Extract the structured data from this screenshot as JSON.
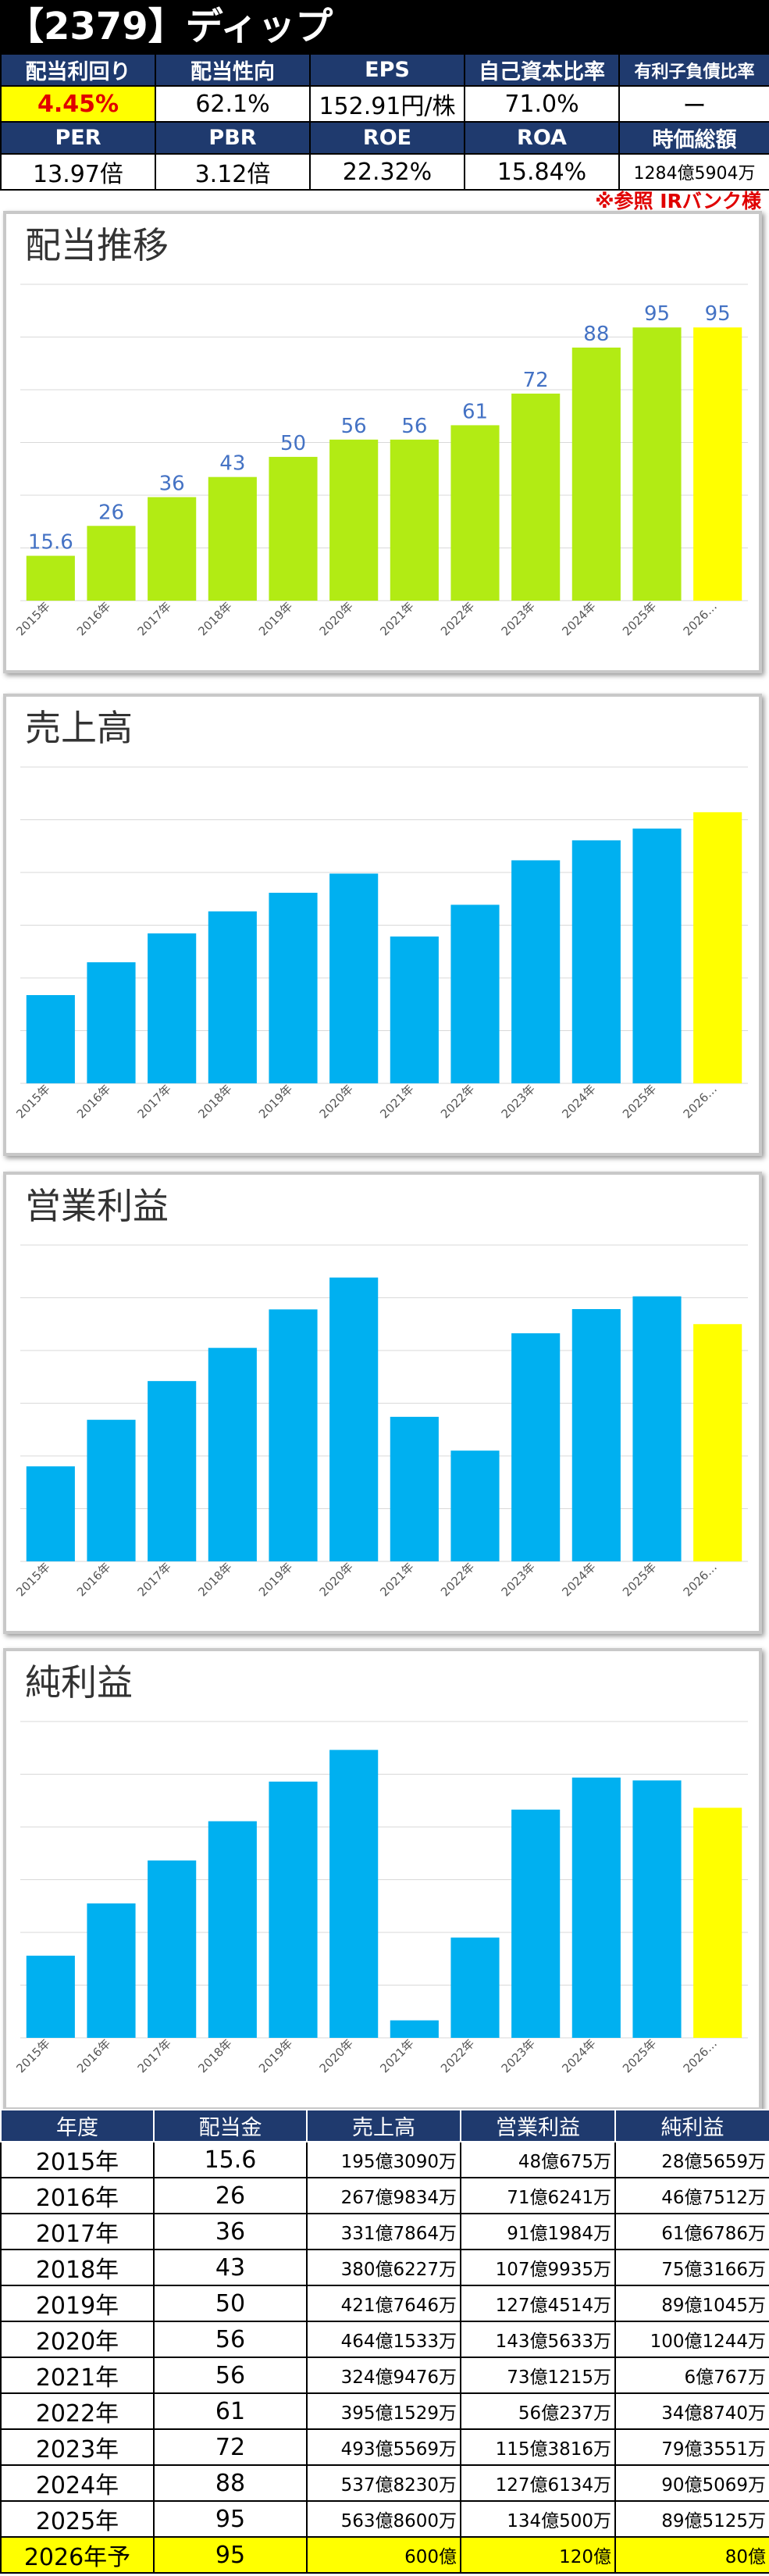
{
  "header": {
    "title": "【2379】ディップ"
  },
  "metrics_row1": {
    "labels": [
      "配当利回り",
      "配当性向",
      "EPS",
      "自己資本比率",
      "有利子負債比率"
    ],
    "values": [
      "4.45%",
      "62.1%",
      "152.91円/株",
      "71.0%",
      "ー"
    ]
  },
  "metrics_row2": {
    "labels": [
      "PER",
      "PBR",
      "ROE",
      "ROA",
      "時価総額"
    ],
    "values": [
      "13.97倍",
      "3.12倍",
      "22.32%",
      "15.84%",
      "1284億5904万"
    ]
  },
  "note": "※参照 IRバンク様",
  "colors": {
    "dividend_bar": "#b2eb14",
    "value_bar": "#00b0f0",
    "forecast_bar": "#ffff00",
    "header_bg": "#1f3a6e",
    "label_text": "#4472c4",
    "note_text": "#e00000"
  },
  "chart_data": [
    {
      "type": "bar",
      "title": "配当推移",
      "categories": [
        "2015年",
        "2016年",
        "2017年",
        "2018年",
        "2019年",
        "2020年",
        "2021年",
        "2022年",
        "2023年",
        "2024年",
        "2025年",
        "2026…"
      ],
      "values": [
        15.6,
        26,
        36,
        43,
        50,
        56,
        56,
        61,
        72,
        88,
        95,
        95
      ],
      "data_labels": [
        "15.6",
        "26",
        "36",
        "43",
        "50",
        "56",
        "56",
        "61",
        "72",
        "88",
        "95",
        "95"
      ],
      "forecast_index": 11,
      "ylim": [
        0,
        110
      ],
      "grid": true
    },
    {
      "type": "bar",
      "title": "売上高",
      "categories": [
        "2015年",
        "2016年",
        "2017年",
        "2018年",
        "2019年",
        "2020年",
        "2021年",
        "2022年",
        "2023年",
        "2024年",
        "2025年",
        "2026…"
      ],
      "values": [
        195.3,
        267.98,
        331.79,
        380.62,
        421.76,
        464.15,
        324.95,
        395.15,
        493.56,
        537.82,
        563.86,
        600
      ],
      "forecast_index": 11,
      "ylim": [
        0,
        700
      ],
      "grid": true
    },
    {
      "type": "bar",
      "title": "営業利益",
      "categories": [
        "2015年",
        "2016年",
        "2017年",
        "2018年",
        "2019年",
        "2020年",
        "2021年",
        "2022年",
        "2023年",
        "2024年",
        "2025年",
        "2026…"
      ],
      "values": [
        48.07,
        71.62,
        91.2,
        107.99,
        127.45,
        143.56,
        73.12,
        56.02,
        115.38,
        127.61,
        134.05,
        120
      ],
      "forecast_index": 11,
      "ylim": [
        0,
        160
      ],
      "grid": true
    },
    {
      "type": "bar",
      "title": "純利益",
      "categories": [
        "2015年",
        "2016年",
        "2017年",
        "2018年",
        "2019年",
        "2020年",
        "2021年",
        "2022年",
        "2023年",
        "2024年",
        "2025年",
        "2026…"
      ],
      "values": [
        28.57,
        46.75,
        61.68,
        75.32,
        89.1,
        100.12,
        6.08,
        34.87,
        79.36,
        90.51,
        89.51,
        80
      ],
      "forecast_index": 11,
      "ylim": [
        0,
        110
      ],
      "grid": true
    }
  ],
  "table": {
    "headers": [
      "年度",
      "配当金",
      "売上高",
      "営業利益",
      "純利益"
    ],
    "rows": [
      [
        "2015年",
        "15.6",
        "195億3090万",
        "48億675万",
        "28億5659万"
      ],
      [
        "2016年",
        "26",
        "267億9834万",
        "71億6241万",
        "46億7512万"
      ],
      [
        "2017年",
        "36",
        "331億7864万",
        "91億1984万",
        "61億6786万"
      ],
      [
        "2018年",
        "43",
        "380億6227万",
        "107億9935万",
        "75億3166万"
      ],
      [
        "2019年",
        "50",
        "421億7646万",
        "127億4514万",
        "89億1045万"
      ],
      [
        "2020年",
        "56",
        "464億1533万",
        "143億5633万",
        "100億1244万"
      ],
      [
        "2021年",
        "56",
        "324億9476万",
        "73億1215万",
        "6億767万"
      ],
      [
        "2022年",
        "61",
        "395億1529万",
        "56億237万",
        "34億8740万"
      ],
      [
        "2023年",
        "72",
        "493億5569万",
        "115億3816万",
        "79億3551万"
      ],
      [
        "2024年",
        "88",
        "537億8230万",
        "127億6134万",
        "90億5069万"
      ],
      [
        "2025年",
        "95",
        "563億8600万",
        "134億500万",
        "89億5125万"
      ],
      [
        "2026年予",
        "95",
        "600億",
        "120億",
        "80億"
      ]
    ]
  }
}
